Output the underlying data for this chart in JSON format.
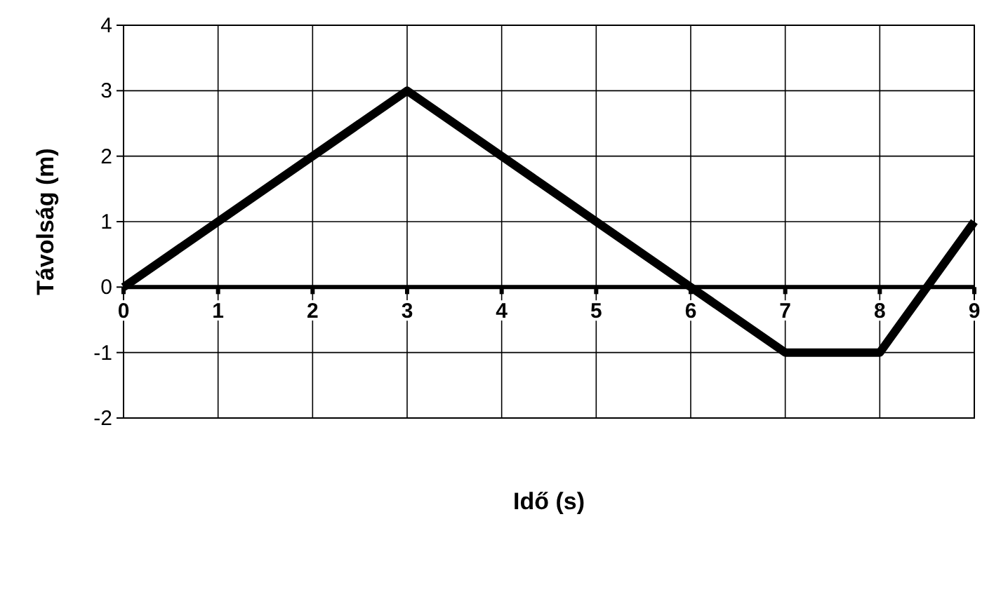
{
  "chart_data": {
    "type": "line",
    "xlabel": "Idő (s)",
    "ylabel": "Távolság (m)",
    "x": [
      0,
      3,
      6,
      7,
      8,
      9
    ],
    "series": [
      {
        "color": "#000000",
        "values": [
          0,
          3,
          0,
          -1,
          -1,
          1
        ]
      }
    ],
    "xlim": [
      0,
      9
    ],
    "xticks": [
      0,
      1,
      2,
      3,
      4,
      5,
      6,
      7,
      8,
      9
    ],
    "ylim": [
      -2,
      4
    ],
    "yticks": [
      -2,
      -1,
      0,
      1,
      2,
      3,
      4
    ],
    "grid": true,
    "marker": "none",
    "line_style": "solid"
  }
}
